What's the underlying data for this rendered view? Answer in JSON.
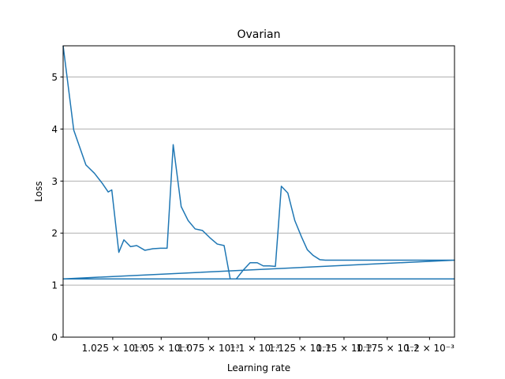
{
  "chart_data": {
    "type": "line",
    "title": "Ovarian",
    "xlabel": "Learning rate",
    "ylabel": "Loss",
    "x_scale": "log",
    "xlim": [
      0.001,
      0.001215
    ],
    "ylim": [
      0,
      5.6
    ],
    "grid": {
      "y": true,
      "x": false
    },
    "line_color": "#1f77b4",
    "grid_color": "#b0b0b0",
    "x_ticks": [
      {
        "value": 0.001025,
        "label": "1.025 × 10⁻³"
      },
      {
        "value": 0.00105,
        "label": "1.05 × 10⁻³"
      },
      {
        "value": 0.001075,
        "label": "1.075 × 10⁻³"
      },
      {
        "value": 0.0011,
        "label": "1.1 × 10⁻³"
      },
      {
        "value": 0.001125,
        "label": "1.125 × 10⁻³"
      },
      {
        "value": 0.00115,
        "label": "1.15 × 10⁻³"
      },
      {
        "value": 0.001175,
        "label": "1.175 × 10⁻³"
      },
      {
        "value": 0.0012,
        "label": "1.2 × 10⁻³"
      }
    ],
    "y_ticks": [
      {
        "value": 0,
        "label": "0"
      },
      {
        "value": 1,
        "label": "1"
      },
      {
        "value": 2,
        "label": "2"
      },
      {
        "value": 3,
        "label": "3"
      },
      {
        "value": 4,
        "label": "4"
      },
      {
        "value": 5,
        "label": "5"
      }
    ],
    "series": [
      {
        "x": [
          0.001,
          0.0010053,
          0.0010114,
          0.0010157,
          0.0010196,
          0.0010227,
          0.0010245,
          0.0010281,
          0.0010307,
          0.0010341,
          0.0010373,
          0.0010415,
          0.0010457,
          0.0010496,
          0.0010531,
          0.0010563,
          0.0010605,
          0.0010642,
          0.0010679,
          0.0010718,
          0.0010758,
          0.0010797,
          0.0010834,
          0.0010867,
          0.00109,
          0.0010938,
          0.0010975,
          0.0011014,
          0.0011047,
          0.0011081,
          0.0011114,
          0.0011147,
          0.0011183,
          0.0011222,
          0.0011259,
          0.0011292,
          0.0011325,
          0.0011362,
          0.0011394,
          0.0011425,
          0.0011453,
          0.0011482,
          0.0011508,
          0.0011533,
          0.0011555,
          0.0011575,
          0.0011594,
          0.0011613,
          0.0011629,
          0.0011645,
          0.001166,
          0.0011673,
          0.0011686,
          0.0011699,
          0.0011711,
          0.0011723,
          0.0011735,
          0.0011746,
          0.0011757,
          0.0011766,
          0.0011775,
          0.0011783,
          0.001179,
          0.0011797,
          0.0011803,
          0.001181,
          0.0011816,
          0.0011823,
          0.001183,
          0.0011838,
          0.0011846,
          0.0011855,
          0.0011863,
          0.0011872,
          0.0011881,
          0.0011891,
          0.0011901,
          0.0011912,
          0.0011923,
          0.0011935,
          0.0011948,
          0.0011962,
          0.0011977,
          0.0011993,
          0.001201,
          0.0012028,
          0.0012047,
          0.0012067,
          0.0012089,
          0.0012111,
          0.001213,
          0.001215,
          0.001,
          0.001215
        ],
        "y": [
          5.6,
          3.98,
          3.31,
          3.15,
          2.96,
          2.79,
          2.83,
          1.63,
          1.87,
          1.74,
          1.76,
          1.67,
          1.7,
          1.71,
          1.71,
          3.7,
          2.51,
          2.24,
          2.08,
          2.05,
          1.91,
          1.79,
          1.76,
          1.12,
          1.12,
          1.29,
          1.43,
          1.43,
          1.37,
          1.37,
          1.36,
          2.9,
          2.77,
          2.24,
          1.93,
          1.68,
          1.57,
          1.49,
          1.48,
          1.48,
          1.48,
          1.48,
          1.48,
          1.48,
          1.48,
          1.48,
          1.48,
          1.48,
          1.48,
          1.48,
          1.48,
          1.48,
          1.48,
          1.48,
          1.48,
          1.48,
          1.48,
          1.48,
          1.48,
          1.48,
          1.48,
          1.48,
          1.48,
          1.48,
          1.48,
          1.48,
          1.48,
          1.48,
          1.48,
          1.48,
          1.48,
          1.48,
          1.48,
          1.48,
          1.48,
          1.48,
          1.48,
          1.48,
          1.48,
          1.48,
          1.48,
          1.48,
          1.48,
          1.48,
          1.48,
          1.48,
          1.48,
          1.48,
          1.48,
          1.48,
          1.48,
          1.48,
          1.12,
          1.12
        ]
      }
    ]
  }
}
